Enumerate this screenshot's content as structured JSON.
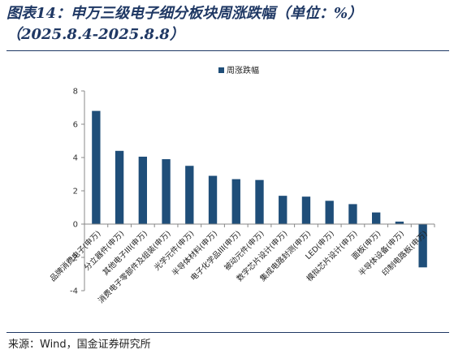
{
  "header": {
    "title_line1": "图表14：申万三级电子细分板块周涨跌幅（单位：%）",
    "title_line2": "（2025.8.4-2025.8.8）"
  },
  "footer": {
    "source": "来源：Wind，国金证券研究所"
  },
  "chart_data": {
    "type": "bar",
    "categories": [
      "品牌消费电子(申万)",
      "分立器件(申万)",
      "其他电子III(申万)",
      "消费电子零部件及组装(申万)",
      "光学元件(申万)",
      "半导体材料(申万)",
      "电子化学品III(申万)",
      "被动元件(申万)",
      "数字芯片设计(申万)",
      "集成电路封测(申万)",
      "LED(申万)",
      "模拟芯片设计(申万)",
      "面板(申万)",
      "半导体设备(申万)",
      "印制电路板(申万)"
    ],
    "series": [
      {
        "name": "周涨跌幅",
        "values": [
          6.8,
          4.4,
          4.05,
          3.9,
          3.5,
          2.9,
          2.7,
          2.65,
          1.7,
          1.65,
          1.4,
          1.2,
          0.7,
          0.15,
          -2.6
        ]
      }
    ],
    "ylim": [
      -4,
      8
    ],
    "yticks": [
      -4,
      -2,
      0,
      2,
      4,
      6,
      8
    ],
    "legend_position": "top",
    "grid": false,
    "bar_color": "#1f4e79"
  }
}
